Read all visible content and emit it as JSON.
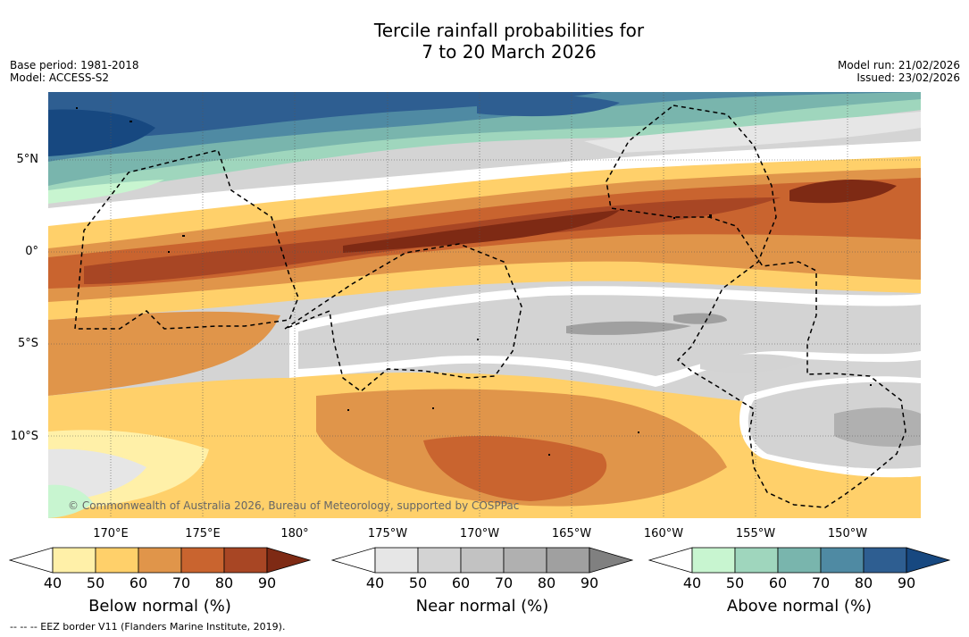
{
  "title_line1": "Tercile rainfall probabilities for",
  "title_line2": "7 to 20 March 2026",
  "meta_left": {
    "base_period": "Base period: 1981-2018",
    "model": "Model: ACCESS-S2"
  },
  "meta_right": {
    "model_run": "Model run: 21/02/2026",
    "issued": "Issued: 23/02/2026"
  },
  "map": {
    "credit": "© Commonwealth of Australia 2026, Bureau of Meteorology, supported by COSPPac",
    "lat_labels": [
      "5°N",
      "0°",
      "5°S",
      "10°S"
    ],
    "lon_labels": [
      "170°E",
      "175°E",
      "180°",
      "175°W",
      "170°W",
      "165°W",
      "160°W",
      "155°W",
      "150°W"
    ]
  },
  "colorbars": {
    "below": {
      "title": "Below normal (%)",
      "ticks": [
        "40",
        "50",
        "60",
        "70",
        "80",
        "90"
      ],
      "colors": [
        "#ffffff",
        "#fff0a8",
        "#ffd06a",
        "#e0954a",
        "#c9642f",
        "#a84624",
        "#7e2a14"
      ]
    },
    "near": {
      "title": "Near normal (%)",
      "ticks": [
        "40",
        "50",
        "60",
        "70",
        "80",
        "90"
      ],
      "colors": [
        "#ffffff",
        "#e6e6e6",
        "#d3d3d3",
        "#c2c2c2",
        "#b0b0b0",
        "#a0a0a0",
        "#808080"
      ]
    },
    "above": {
      "title": "Above normal (%)",
      "ticks": [
        "40",
        "50",
        "60",
        "70",
        "80",
        "90"
      ],
      "colors": [
        "#ffffff",
        "#c8f5d0",
        "#9fd6bd",
        "#79b5ad",
        "#4f8aa3",
        "#2e5e91",
        "#174880"
      ]
    }
  },
  "footnote": "--  --  -- EEZ border V11 (Flanders Marine Institute, 2019)."
}
